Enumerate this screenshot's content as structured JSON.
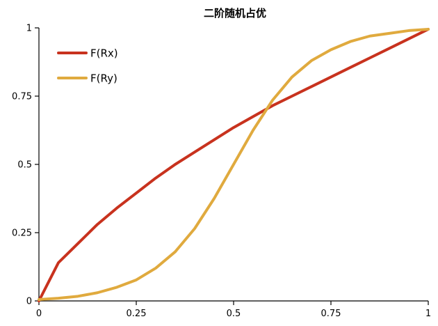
{
  "chart_data": {
    "type": "line",
    "title": "二阶随机占优",
    "xlabel": "",
    "ylabel": "",
    "xlim": [
      0,
      1
    ],
    "ylim": [
      0,
      1
    ],
    "x_ticks": [
      0,
      0.25,
      0.5,
      0.75,
      1
    ],
    "x_tick_labels": [
      "0",
      "0.25",
      "0.5",
      "0.75",
      "1"
    ],
    "y_ticks": [
      0,
      0.25,
      0.5,
      0.75,
      1
    ],
    "y_tick_labels": [
      "0",
      "0.25",
      "0.5",
      "0.75",
      "1"
    ],
    "grid": false,
    "legend_position": "top-left",
    "series": [
      {
        "name": "F(Rx)",
        "color": "#c8321e",
        "x": [
          0,
          0.05,
          0.1,
          0.15,
          0.2,
          0.25,
          0.3,
          0.35,
          0.4,
          0.45,
          0.5,
          0.55,
          0.6,
          0.65,
          0.7,
          0.75,
          0.8,
          0.85,
          0.9,
          0.95,
          1.0
        ],
        "y": [
          0.0,
          0.14,
          0.21,
          0.28,
          0.34,
          0.395,
          0.45,
          0.5,
          0.545,
          0.59,
          0.635,
          0.675,
          0.715,
          0.75,
          0.785,
          0.82,
          0.855,
          0.89,
          0.925,
          0.96,
          0.995
        ]
      },
      {
        "name": "F(Ry)",
        "color": "#e0aa3e",
        "x": [
          0,
          0.05,
          0.1,
          0.15,
          0.2,
          0.25,
          0.3,
          0.35,
          0.4,
          0.45,
          0.5,
          0.55,
          0.6,
          0.65,
          0.7,
          0.75,
          0.8,
          0.85,
          0.9,
          0.95,
          1.0
        ],
        "y": [
          0.005,
          0.01,
          0.017,
          0.03,
          0.05,
          0.077,
          0.12,
          0.18,
          0.265,
          0.375,
          0.5,
          0.625,
          0.735,
          0.82,
          0.88,
          0.92,
          0.95,
          0.97,
          0.98,
          0.99,
          0.995
        ]
      }
    ]
  }
}
